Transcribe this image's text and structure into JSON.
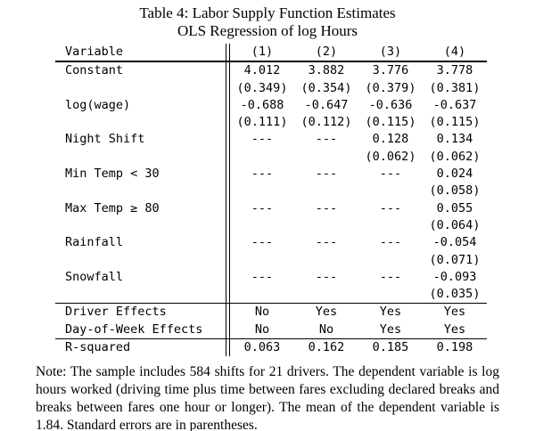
{
  "title": "Table 4: Labor Supply Function Estimates",
  "subtitle": "OLS Regression of log Hours",
  "table": {
    "header": {
      "variable": "Variable",
      "columns": [
        "(1)",
        "(2)",
        "(3)",
        "(4)"
      ]
    },
    "coef_rows": [
      {
        "label": "Constant",
        "cells": [
          "4.012",
          "3.882",
          "3.776",
          "3.778"
        ]
      },
      {
        "label": "",
        "cells": [
          "(0.349)",
          "(0.354)",
          "(0.379)",
          "(0.381)"
        ]
      },
      {
        "label": "log(wage)",
        "cells": [
          "-0.688",
          "-0.647",
          "-0.636",
          "-0.637"
        ]
      },
      {
        "label": "",
        "cells": [
          "(0.111)",
          "(0.112)",
          "(0.115)",
          "(0.115)"
        ]
      },
      {
        "label": "Night Shift",
        "cells": [
          "---",
          "---",
          "0.128",
          "0.134"
        ]
      },
      {
        "label": "",
        "cells": [
          "",
          "",
          "(0.062)",
          "(0.062)"
        ]
      },
      {
        "label": "Min Temp < 30",
        "cells": [
          "---",
          "---",
          "---",
          "0.024"
        ]
      },
      {
        "label": "",
        "cells": [
          "",
          "",
          "",
          "(0.058)"
        ]
      },
      {
        "label": "Max Temp ≥ 80",
        "cells": [
          "---",
          "---",
          "---",
          "0.055"
        ]
      },
      {
        "label": "",
        "cells": [
          "",
          "",
          "",
          "(0.064)"
        ]
      },
      {
        "label": "Rainfall",
        "cells": [
          "---",
          "---",
          "---",
          "-0.054"
        ]
      },
      {
        "label": "",
        "cells": [
          "",
          "",
          "",
          "(0.071)"
        ]
      },
      {
        "label": "Snowfall",
        "cells": [
          "---",
          "---",
          "---",
          "-0.093"
        ]
      },
      {
        "label": "",
        "cells": [
          "",
          "",
          "",
          "(0.035)"
        ]
      }
    ],
    "effects_rows": [
      {
        "label": "Driver Effects",
        "cells": [
          "No",
          "Yes",
          "Yes",
          "Yes"
        ]
      },
      {
        "label": "Day-of-Week Effects",
        "cells": [
          "No",
          "No",
          "Yes",
          "Yes"
        ]
      }
    ],
    "stats_rows": [
      {
        "label": "R-squared",
        "cells": [
          "0.063",
          "0.162",
          "0.185",
          "0.198"
        ]
      }
    ]
  },
  "note": "Note: The sample includes 584 shifts for 21 drivers. The dependent variable is log hours worked (driving time plus time between fares excluding declared breaks and breaks between fares one hour or longer). The mean of the dependent variable is 1.84. Standard errors are in parentheses."
}
